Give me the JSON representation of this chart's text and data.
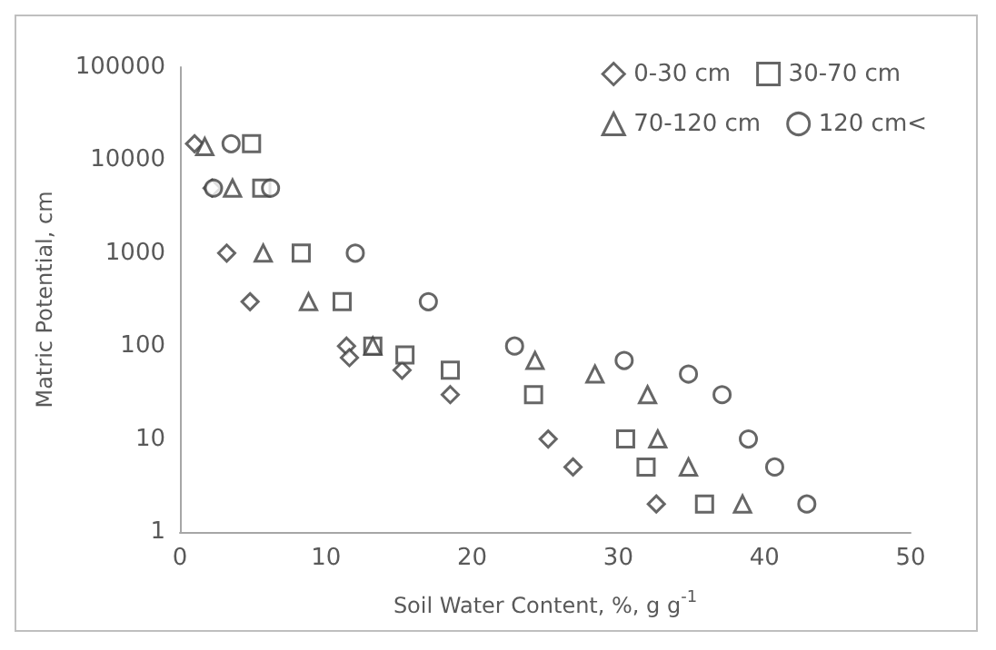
{
  "chart_data": {
    "type": "scatter",
    "xlabel": "Soil Water Content, %, g g$^{-1}$",
    "ylabel": "Matric Potential, cm",
    "log": "y",
    "xlim": [
      0,
      50
    ],
    "xticks": [
      0,
      10,
      20,
      30,
      40,
      50
    ],
    "ylim": [
      1,
      100000
    ],
    "yticks": [
      1,
      10,
      100,
      1000,
      10000,
      100000
    ],
    "grid": false,
    "legend": "top right",
    "series": [
      {
        "name": "0-30 cm",
        "color": "#404040",
        "marker": "diamond",
        "x": [
          1.0,
          2.2,
          3.2,
          4.8,
          11.4,
          11.6,
          15.2,
          18.5,
          25.2,
          26.9,
          32.6
        ],
        "values": [
          15000,
          5000,
          1000,
          300,
          100,
          75,
          55,
          30,
          10,
          5,
          2
        ]
      },
      {
        "name": "30-70 cm",
        "color": "#404040",
        "marker": "square",
        "x": [
          4.9,
          5.6,
          8.3,
          11.1,
          13.2,
          15.4,
          18.5,
          24.2,
          30.5,
          31.9,
          35.9
        ],
        "values": [
          15000,
          5000,
          1000,
          300,
          100,
          80,
          55,
          30,
          10,
          5,
          2
        ]
      },
      {
        "name": "70-120 cm",
        "color": "#404040",
        "marker": "triangle",
        "x": [
          1.7,
          3.6,
          5.7,
          8.8,
          13.2,
          24.3,
          28.4,
          32,
          32.7,
          34.8,
          38.5
        ],
        "values": [
          14000,
          5000,
          1000,
          300,
          100,
          70,
          50,
          30,
          10,
          5,
          2
        ]
      },
      {
        "name": "120 cm<",
        "color": "#404040",
        "marker": "circle",
        "x": [
          3.5,
          2.3,
          6.2,
          12,
          17,
          22.9,
          30.4,
          34.8,
          37.1,
          38.9,
          40.7,
          42.9
        ],
        "values": [
          15000,
          5000,
          5000,
          1000,
          300,
          100,
          70,
          50,
          30,
          10,
          5,
          2
        ]
      }
    ]
  }
}
